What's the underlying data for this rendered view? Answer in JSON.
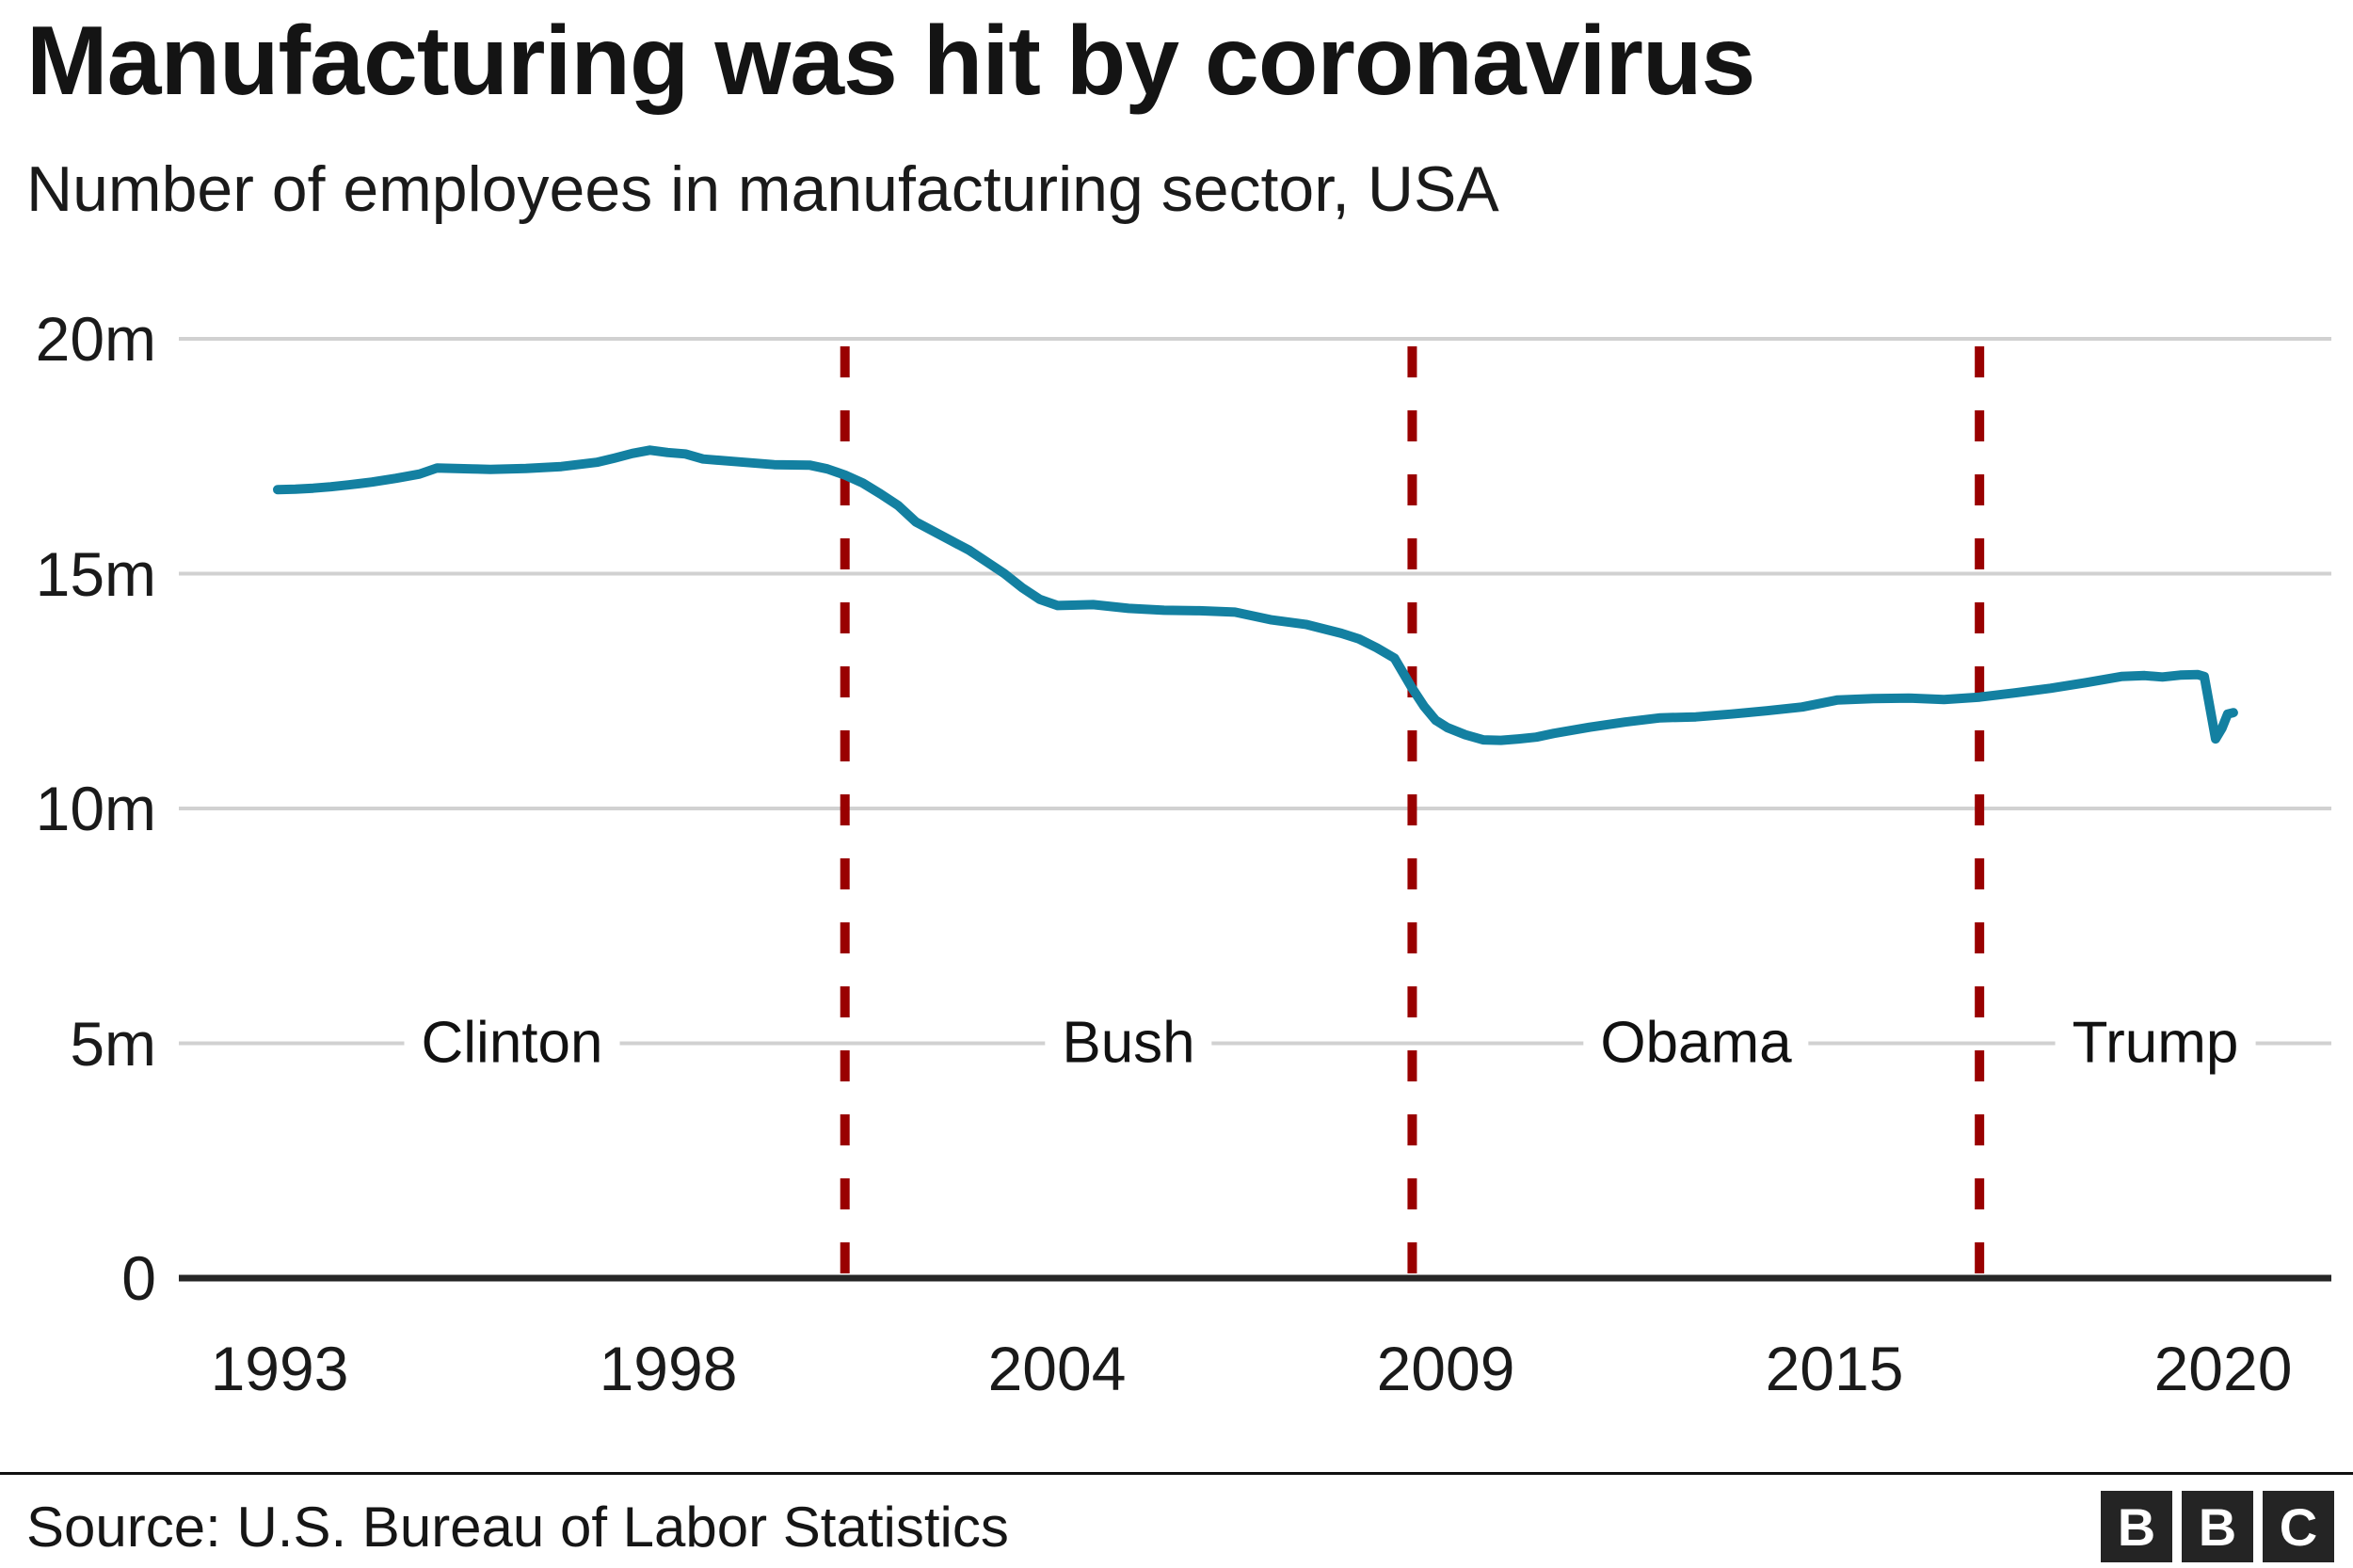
{
  "header": {
    "title": "Manufacturing was hit by coronavirus",
    "subtitle": "Number of employees in manufacturing sector, USA"
  },
  "footer": {
    "source": "Source: U.S. Bureau of Labor Statistics",
    "logo_letters": [
      "B",
      "B",
      "C"
    ]
  },
  "chart_data": {
    "type": "line",
    "title": "Manufacturing was hit by coronavirus",
    "subtitle": "Number of employees in manufacturing sector, USA",
    "unit": "millions of employees",
    "ylim": [
      0,
      20
    ],
    "y_tick_labels": [
      "20m",
      "15m",
      "10m",
      "5m",
      "0"
    ],
    "y_tick_values": [
      20,
      15,
      10,
      5,
      0
    ],
    "x_tick_labels": [
      "1993",
      "1998",
      "2004",
      "2009",
      "2015",
      "2020"
    ],
    "x_range_years": [
      1993,
      2020.6
    ],
    "grid": "horizontal",
    "legend": "none",
    "line_color": "#1380a1",
    "divider_color": "#990000",
    "grid_color": "#d1d1d1",
    "axis_color": "#262626",
    "presidents": [
      {
        "name": "Clinton",
        "term_start": 1993,
        "divider": false
      },
      {
        "name": "Bush",
        "term_start": 2001,
        "divider": true
      },
      {
        "name": "Obama",
        "term_start": 2009,
        "divider": true
      },
      {
        "name": "Trump",
        "term_start": 2017,
        "divider": true
      }
    ],
    "series": [
      {
        "name": "Manufacturing employees (millions)",
        "points": [
          [
            1993.0,
            16.79
          ],
          [
            1993.25,
            16.8
          ],
          [
            1993.5,
            16.82
          ],
          [
            1993.75,
            16.85
          ],
          [
            1994.0,
            16.89
          ],
          [
            1994.33,
            16.95
          ],
          [
            1994.67,
            17.03
          ],
          [
            1995.0,
            17.12
          ],
          [
            1995.25,
            17.25
          ],
          [
            1995.5,
            17.24
          ],
          [
            1995.75,
            17.23
          ],
          [
            1996.0,
            17.22
          ],
          [
            1996.5,
            17.24
          ],
          [
            1997.0,
            17.28
          ],
          [
            1997.5,
            17.37
          ],
          [
            1997.75,
            17.46
          ],
          [
            1998.0,
            17.56
          ],
          [
            1998.25,
            17.63
          ],
          [
            1998.5,
            17.58
          ],
          [
            1998.75,
            17.55
          ],
          [
            1999.0,
            17.44
          ],
          [
            1999.5,
            17.38
          ],
          [
            2000.0,
            17.32
          ],
          [
            2000.5,
            17.31
          ],
          [
            2000.75,
            17.23
          ],
          [
            2001.0,
            17.1
          ],
          [
            2001.25,
            16.93
          ],
          [
            2001.5,
            16.7
          ],
          [
            2001.75,
            16.45
          ],
          [
            2002.0,
            16.1
          ],
          [
            2002.25,
            15.9
          ],
          [
            2002.5,
            15.7
          ],
          [
            2002.75,
            15.5
          ],
          [
            2003.0,
            15.25
          ],
          [
            2003.25,
            15.0
          ],
          [
            2003.5,
            14.7
          ],
          [
            2003.75,
            14.45
          ],
          [
            2004.0,
            14.32
          ],
          [
            2004.5,
            14.34
          ],
          [
            2005.0,
            14.26
          ],
          [
            2005.5,
            14.22
          ],
          [
            2006.0,
            14.21
          ],
          [
            2006.5,
            14.18
          ],
          [
            2007.0,
            14.02
          ],
          [
            2007.5,
            13.92
          ],
          [
            2008.0,
            13.73
          ],
          [
            2008.25,
            13.61
          ],
          [
            2008.5,
            13.42
          ],
          [
            2008.75,
            13.2
          ],
          [
            2009.0,
            12.56
          ],
          [
            2009.17,
            12.17
          ],
          [
            2009.33,
            11.88
          ],
          [
            2009.5,
            11.72
          ],
          [
            2009.75,
            11.57
          ],
          [
            2010.0,
            11.46
          ],
          [
            2010.25,
            11.45
          ],
          [
            2010.5,
            11.48
          ],
          [
            2010.75,
            11.52
          ],
          [
            2011.0,
            11.6
          ],
          [
            2011.5,
            11.73
          ],
          [
            2012.0,
            11.84
          ],
          [
            2012.5,
            11.93
          ],
          [
            2013.0,
            11.95
          ],
          [
            2013.5,
            12.01
          ],
          [
            2014.0,
            12.08
          ],
          [
            2014.5,
            12.16
          ],
          [
            2015.0,
            12.31
          ],
          [
            2015.5,
            12.34
          ],
          [
            2016.0,
            12.35
          ],
          [
            2016.5,
            12.32
          ],
          [
            2017.0,
            12.37
          ],
          [
            2017.5,
            12.46
          ],
          [
            2018.0,
            12.56
          ],
          [
            2018.5,
            12.68
          ],
          [
            2019.0,
            12.81
          ],
          [
            2019.33,
            12.83
          ],
          [
            2019.58,
            12.8
          ],
          [
            2019.83,
            12.84
          ],
          [
            2020.08,
            12.85
          ],
          [
            2020.17,
            12.81
          ],
          [
            2020.33,
            11.48
          ],
          [
            2020.42,
            11.71
          ],
          [
            2020.5,
            12.01
          ],
          [
            2020.58,
            12.04
          ]
        ]
      }
    ],
    "source": "U.S. Bureau of Labor Statistics"
  }
}
